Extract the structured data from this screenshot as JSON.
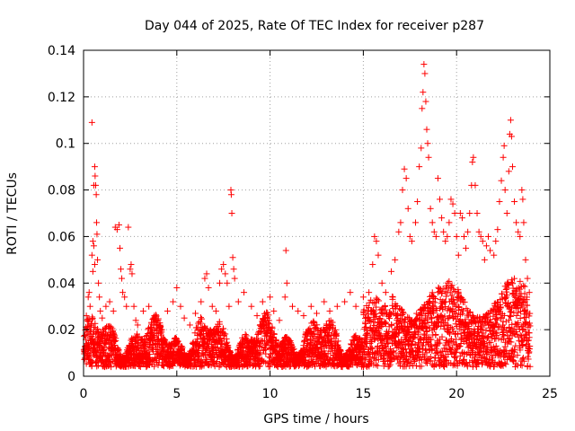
{
  "chart_data": {
    "type": "scatter",
    "title": "Day 044 of 2025, Rate Of TEC Index for receiver p287",
    "xlabel": "GPS time / hours",
    "ylabel": "ROTI / TECUs",
    "xlim": [
      0,
      25
    ],
    "ylim": [
      0,
      0.14
    ],
    "x_ticks": [
      0,
      5,
      10,
      15,
      20,
      25
    ],
    "x_tick_labels": [
      "0",
      "5",
      "10",
      "15",
      "20",
      "25"
    ],
    "y_ticks": [
      0,
      0.02,
      0.04,
      0.06,
      0.08,
      0.1,
      0.12,
      0.14
    ],
    "y_tick_labels": [
      "0",
      "0.02",
      "0.04",
      "0.06",
      "0.08",
      "0.1",
      "0.12",
      "0.14"
    ],
    "grid": true,
    "marker": "+",
    "marker_color": "#ff0000",
    "series": [
      {
        "name": "ROTI",
        "points": [
          [
            0.1,
            0.012
          ],
          [
            0.15,
            0.026
          ],
          [
            0.2,
            0.018
          ],
          [
            0.25,
            0.034
          ],
          [
            0.3,
            0.036
          ],
          [
            0.35,
            0.03
          ],
          [
            0.4,
            0.022
          ],
          [
            0.45,
            0.052
          ],
          [
            0.5,
            0.058
          ],
          [
            0.55,
            0.056
          ],
          [
            0.6,
            0.09
          ],
          [
            0.62,
            0.086
          ],
          [
            0.65,
            0.082
          ],
          [
            0.68,
            0.078
          ],
          [
            0.7,
            0.066
          ],
          [
            0.72,
            0.061
          ],
          [
            0.75,
            0.05
          ],
          [
            0.8,
            0.04
          ],
          [
            0.85,
            0.034
          ],
          [
            0.9,
            0.028
          ],
          [
            0.45,
            0.109
          ],
          [
            0.55,
            0.082
          ],
          [
            0.5,
            0.045
          ],
          [
            0.6,
            0.048
          ],
          [
            1.0,
            0.025
          ],
          [
            1.2,
            0.03
          ],
          [
            1.4,
            0.032
          ],
          [
            1.6,
            0.028
          ],
          [
            1.7,
            0.064
          ],
          [
            1.8,
            0.063
          ],
          [
            1.9,
            0.065
          ],
          [
            1.95,
            0.055
          ],
          [
            2.0,
            0.046
          ],
          [
            2.05,
            0.042
          ],
          [
            2.1,
            0.036
          ],
          [
            2.2,
            0.034
          ],
          [
            2.3,
            0.03
          ],
          [
            2.4,
            0.064
          ],
          [
            2.5,
            0.046
          ],
          [
            2.55,
            0.048
          ],
          [
            2.6,
            0.044
          ],
          [
            2.7,
            0.03
          ],
          [
            2.8,
            0.024
          ],
          [
            2.9,
            0.022
          ],
          [
            3.2,
            0.028
          ],
          [
            3.5,
            0.03
          ],
          [
            3.8,
            0.026
          ],
          [
            4.0,
            0.022
          ],
          [
            4.2,
            0.02
          ],
          [
            4.5,
            0.028
          ],
          [
            4.8,
            0.032
          ],
          [
            5.0,
            0.038
          ],
          [
            5.2,
            0.03
          ],
          [
            5.4,
            0.025
          ],
          [
            5.7,
            0.022
          ],
          [
            6.0,
            0.027
          ],
          [
            6.3,
            0.032
          ],
          [
            6.5,
            0.042
          ],
          [
            6.6,
            0.044
          ],
          [
            6.7,
            0.038
          ],
          [
            6.9,
            0.03
          ],
          [
            7.1,
            0.028
          ],
          [
            7.3,
            0.04
          ],
          [
            7.4,
            0.046
          ],
          [
            7.5,
            0.048
          ],
          [
            7.6,
            0.044
          ],
          [
            7.7,
            0.04
          ],
          [
            7.8,
            0.03
          ],
          [
            7.9,
            0.08
          ],
          [
            7.92,
            0.078
          ],
          [
            7.95,
            0.07
          ],
          [
            8.0,
            0.051
          ],
          [
            8.05,
            0.046
          ],
          [
            8.1,
            0.042
          ],
          [
            8.3,
            0.032
          ],
          [
            8.6,
            0.036
          ],
          [
            9.0,
            0.03
          ],
          [
            9.3,
            0.026
          ],
          [
            9.6,
            0.032
          ],
          [
            10.0,
            0.034
          ],
          [
            10.2,
            0.028
          ],
          [
            10.5,
            0.024
          ],
          [
            10.8,
            0.034
          ],
          [
            10.85,
            0.054
          ],
          [
            10.9,
            0.04
          ],
          [
            11.2,
            0.03
          ],
          [
            11.5,
            0.028
          ],
          [
            11.8,
            0.026
          ],
          [
            12.2,
            0.03
          ],
          [
            12.5,
            0.027
          ],
          [
            12.9,
            0.032
          ],
          [
            13.2,
            0.028
          ],
          [
            13.6,
            0.03
          ],
          [
            14.0,
            0.032
          ],
          [
            14.3,
            0.036
          ],
          [
            14.6,
            0.03
          ],
          [
            15.0,
            0.034
          ],
          [
            15.3,
            0.036
          ],
          [
            15.5,
            0.048
          ],
          [
            15.6,
            0.06
          ],
          [
            15.7,
            0.058
          ],
          [
            15.8,
            0.052
          ],
          [
            16.0,
            0.04
          ],
          [
            16.2,
            0.036
          ],
          [
            16.5,
            0.045
          ],
          [
            16.7,
            0.05
          ],
          [
            16.9,
            0.062
          ],
          [
            17.0,
            0.066
          ],
          [
            17.1,
            0.08
          ],
          [
            17.2,
            0.089
          ],
          [
            17.3,
            0.085
          ],
          [
            17.4,
            0.072
          ],
          [
            17.5,
            0.06
          ],
          [
            17.6,
            0.058
          ],
          [
            17.8,
            0.066
          ],
          [
            17.9,
            0.075
          ],
          [
            18.0,
            0.09
          ],
          [
            18.1,
            0.098
          ],
          [
            18.15,
            0.115
          ],
          [
            18.2,
            0.122
          ],
          [
            18.25,
            0.134
          ],
          [
            18.3,
            0.13
          ],
          [
            18.35,
            0.118
          ],
          [
            18.4,
            0.106
          ],
          [
            18.45,
            0.1
          ],
          [
            18.5,
            0.094
          ],
          [
            18.6,
            0.072
          ],
          [
            18.7,
            0.066
          ],
          [
            18.8,
            0.062
          ],
          [
            18.9,
            0.06
          ],
          [
            19.0,
            0.085
          ],
          [
            19.1,
            0.076
          ],
          [
            19.2,
            0.068
          ],
          [
            19.3,
            0.062
          ],
          [
            19.4,
            0.058
          ],
          [
            19.5,
            0.06
          ],
          [
            19.6,
            0.066
          ],
          [
            19.7,
            0.076
          ],
          [
            19.8,
            0.074
          ],
          [
            19.9,
            0.07
          ],
          [
            20.0,
            0.06
          ],
          [
            20.1,
            0.052
          ],
          [
            20.2,
            0.07
          ],
          [
            20.3,
            0.068
          ],
          [
            20.4,
            0.06
          ],
          [
            20.5,
            0.055
          ],
          [
            20.6,
            0.062
          ],
          [
            20.7,
            0.07
          ],
          [
            20.8,
            0.082
          ],
          [
            20.85,
            0.092
          ],
          [
            20.9,
            0.094
          ],
          [
            21.0,
            0.082
          ],
          [
            21.1,
            0.07
          ],
          [
            21.2,
            0.062
          ],
          [
            21.3,
            0.06
          ],
          [
            21.4,
            0.058
          ],
          [
            21.5,
            0.05
          ],
          [
            21.6,
            0.056
          ],
          [
            21.7,
            0.06
          ],
          [
            21.8,
            0.054
          ],
          [
            22.0,
            0.052
          ],
          [
            22.1,
            0.058
          ],
          [
            22.2,
            0.063
          ],
          [
            22.3,
            0.075
          ],
          [
            22.4,
            0.084
          ],
          [
            22.5,
            0.094
          ],
          [
            22.55,
            0.099
          ],
          [
            22.6,
            0.08
          ],
          [
            22.7,
            0.07
          ],
          [
            22.8,
            0.088
          ],
          [
            22.85,
            0.104
          ],
          [
            22.9,
            0.11
          ],
          [
            22.95,
            0.103
          ],
          [
            23.0,
            0.09
          ],
          [
            23.1,
            0.075
          ],
          [
            23.2,
            0.066
          ],
          [
            23.3,
            0.062
          ],
          [
            23.4,
            0.06
          ],
          [
            23.5,
            0.08
          ],
          [
            23.55,
            0.076
          ],
          [
            23.6,
            0.066
          ],
          [
            23.7,
            0.05
          ],
          [
            23.8,
            0.042
          ],
          [
            23.9,
            0.036
          ]
        ]
      }
    ]
  }
}
